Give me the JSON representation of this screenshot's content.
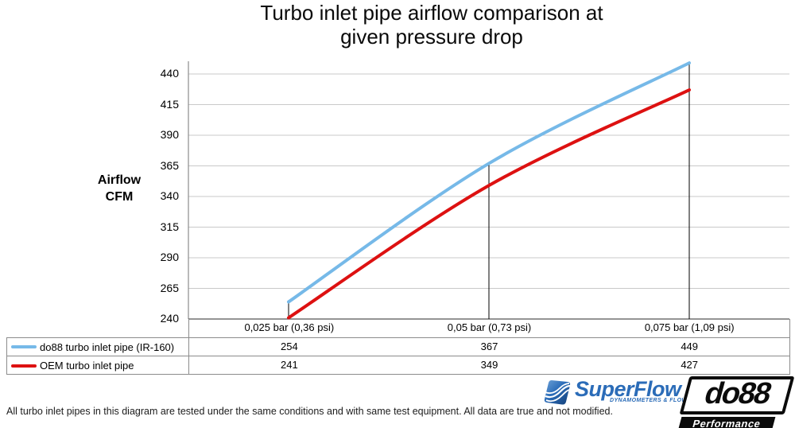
{
  "title": {
    "line1": "Turbo inlet pipe airflow comparison at",
    "line2": "given pressure drop"
  },
  "y_axis": {
    "label_line1": "Airflow",
    "label_line2": "CFM"
  },
  "chart_data": {
    "type": "line",
    "title": "Turbo inlet pipe airflow comparison at given pressure drop",
    "xlabel": "",
    "ylabel": "Airflow CFM",
    "categories": [
      "0,025 bar (0,36 psi)",
      "0,05 bar (0,73 psi)",
      "0,075 bar (1,09 psi)"
    ],
    "series": [
      {
        "name": "do88 turbo inlet pipe (IR-160)",
        "color": "#76B9E8",
        "values": [
          254,
          367,
          449
        ]
      },
      {
        "name": "OEM turbo inlet pipe",
        "color": "#DD1111",
        "values": [
          241,
          349,
          427
        ]
      }
    ],
    "yticks": [
      240,
      265,
      290,
      315,
      340,
      365,
      390,
      415,
      440
    ],
    "ylim": [
      240,
      450
    ],
    "grid": "horizontal",
    "drop_lines": true,
    "legend_position": "table-left"
  },
  "colors": {
    "gridline": "#C9C9C9",
    "axis": "#8C8C8C",
    "axis_bottom": "#555555",
    "drop_line": "#000000",
    "table_border": "#8C8C8C"
  },
  "footer": {
    "note": "All turbo inlet pipes in this diagram are tested under the same conditions and with same test equipment. All data are true and not modified."
  },
  "logos": {
    "superflow": {
      "name": "SuperFlow",
      "tagline": "DYNAMOMETERS & FLOWBENCHES"
    },
    "do88": {
      "name": "do88",
      "tagline": "Performance"
    }
  }
}
